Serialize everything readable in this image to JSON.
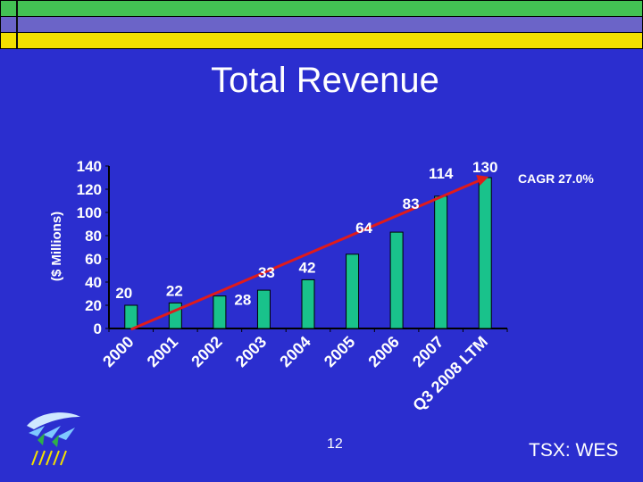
{
  "slide": {
    "title": "Total Revenue",
    "cagr": "CAGR 27.0%",
    "page_number": "12",
    "ticker": "TSX: WES"
  },
  "colors": {
    "background": "#2b2ecf",
    "bar": "#19c28b",
    "trend": "#e01b1b",
    "band_green": "#43c153",
    "band_purple": "#6b64c8",
    "band_yellow": "#f3e000"
  },
  "logo": {
    "icon": "company-logo-icon"
  },
  "chart_data": {
    "type": "bar",
    "categories": [
      "2000",
      "2001",
      "2002",
      "2003",
      "2004",
      "2005",
      "2006",
      "2007",
      "Q3 2008 LTM"
    ],
    "values": [
      20,
      22,
      28,
      33,
      42,
      64,
      83,
      114,
      130
    ],
    "value_labels": [
      "20",
      "22",
      "28",
      "33",
      "42",
      "64",
      "83",
      "114",
      "130"
    ],
    "ylabel": "($ Millions)",
    "xlabel": "",
    "ylim": [
      0,
      140
    ],
    "yticks": [
      0,
      20,
      40,
      60,
      80,
      100,
      120,
      140
    ],
    "grid": false,
    "trend_line": {
      "from": "2000",
      "to": "Q3 2008 LTM"
    }
  }
}
